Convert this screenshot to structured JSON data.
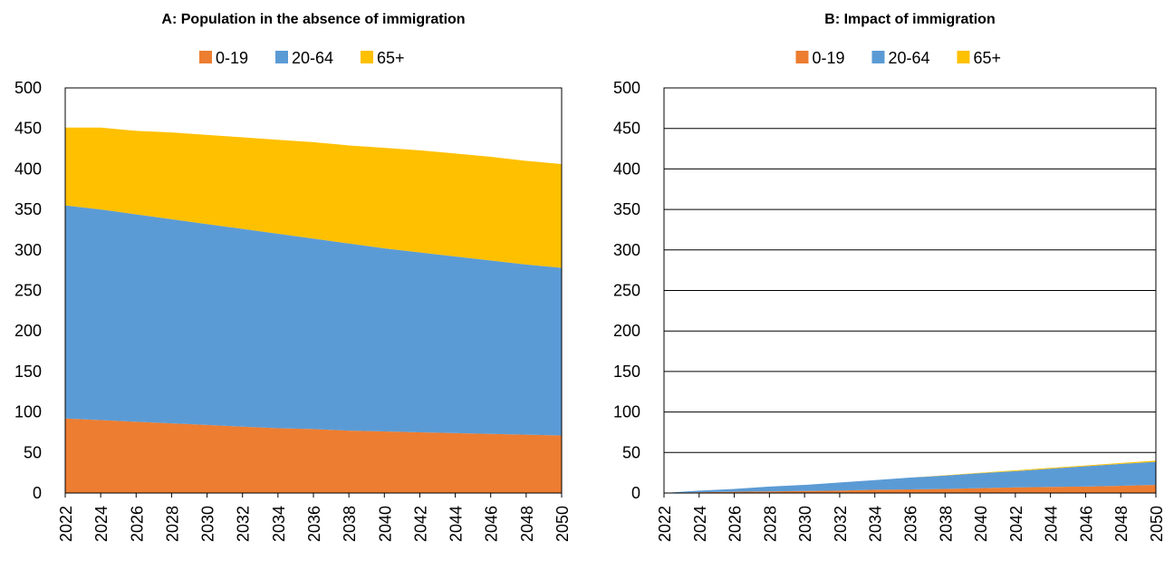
{
  "chart_data": [
    {
      "type": "stacked-area",
      "title": "A: Population in the absence of immigration",
      "x": [
        2022,
        2024,
        2026,
        2028,
        2030,
        2032,
        2034,
        2036,
        2038,
        2040,
        2042,
        2044,
        2046,
        2048,
        2050
      ],
      "xlim": [
        2022,
        2050
      ],
      "xticks": [
        2022,
        2024,
        2026,
        2028,
        2030,
        2032,
        2034,
        2036,
        2038,
        2040,
        2042,
        2044,
        2046,
        2048,
        2050
      ],
      "ylim": [
        0,
        500
      ],
      "yticks": [
        0,
        50,
        100,
        150,
        200,
        250,
        300,
        350,
        400,
        450,
        500
      ],
      "grid": false,
      "series": [
        {
          "name": "0-19",
          "color": "#ed7d31",
          "values": [
            92,
            90,
            88,
            86,
            84,
            82,
            80,
            79,
            77,
            76,
            75,
            74,
            73,
            72,
            71
          ]
        },
        {
          "name": "20-64",
          "color": "#5b9bd5",
          "values": [
            263,
            260,
            256,
            252,
            248,
            244,
            240,
            235,
            231,
            226,
            222,
            218,
            214,
            210,
            207
          ]
        },
        {
          "name": "65+",
          "color": "#ffc000",
          "values": [
            96,
            101,
            103,
            107,
            110,
            113,
            116,
            119,
            121,
            124,
            126,
            127,
            128,
            128,
            128
          ]
        }
      ]
    },
    {
      "type": "stacked-area",
      "title": "B: Impact of immigration",
      "x": [
        2022,
        2024,
        2026,
        2028,
        2030,
        2032,
        2034,
        2036,
        2038,
        2040,
        2042,
        2044,
        2046,
        2048,
        2050
      ],
      "xlim": [
        2022,
        2050
      ],
      "xticks": [
        2022,
        2024,
        2026,
        2028,
        2030,
        2032,
        2034,
        2036,
        2038,
        2040,
        2042,
        2044,
        2046,
        2048,
        2050
      ],
      "ylim": [
        0,
        500
      ],
      "yticks": [
        0,
        50,
        100,
        150,
        200,
        250,
        300,
        350,
        400,
        450,
        500
      ],
      "grid": true,
      "series": [
        {
          "name": "0-19",
          "color": "#ed7d31",
          "values": [
            0,
            1,
            1.5,
            2,
            2.5,
            3,
            4,
            4.5,
            5,
            6,
            7,
            7.5,
            8,
            9,
            10
          ]
        },
        {
          "name": "20-64",
          "color": "#5b9bd5",
          "values": [
            0,
            2,
            3.5,
            6,
            7.5,
            10,
            12,
            14.5,
            16.5,
            18.5,
            20,
            22.5,
            25,
            27,
            28.5
          ]
        },
        {
          "name": "65+",
          "color": "#ffc000",
          "values": [
            0,
            0,
            0,
            0,
            0,
            0,
            0,
            0,
            0.5,
            0.5,
            1,
            1,
            1,
            1,
            1.5
          ]
        }
      ]
    }
  ]
}
